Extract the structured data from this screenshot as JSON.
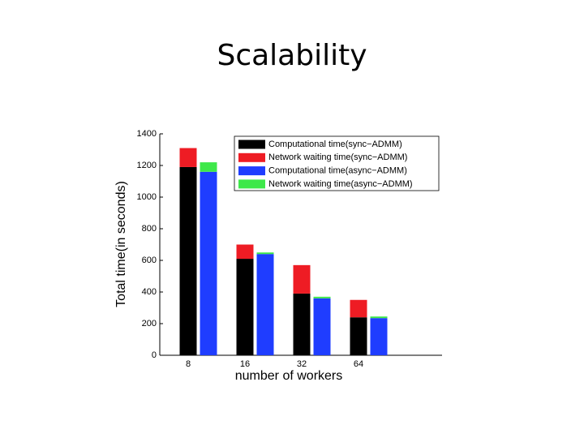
{
  "chart_data": {
    "type": "bar",
    "title": "Scalability",
    "xlabel": "number of workers",
    "ylabel": "Total time(in seconds)",
    "categories": [
      "8",
      "16",
      "32",
      "64"
    ],
    "series": [
      {
        "name": "Computational time(sync−ADMM)",
        "color": "#000000",
        "values": [
          1190,
          610,
          390,
          240
        ]
      },
      {
        "name": "Network waiting time(sync−ADMM)",
        "color": "#ee1c24",
        "values": [
          120,
          90,
          180,
          110
        ]
      },
      {
        "name": "Computational time(async−ADMM)",
        "color": "#1f3dff",
        "values": [
          1160,
          640,
          360,
          235
        ]
      },
      {
        "name": "Network waiting time(async−ADMM)",
        "color": "#3ee84a",
        "values": [
          60,
          10,
          10,
          10
        ]
      }
    ],
    "ylim": [
      0,
      1400
    ],
    "yticks": [
      0,
      200,
      400,
      600,
      800,
      1000,
      1200,
      1400
    ]
  }
}
